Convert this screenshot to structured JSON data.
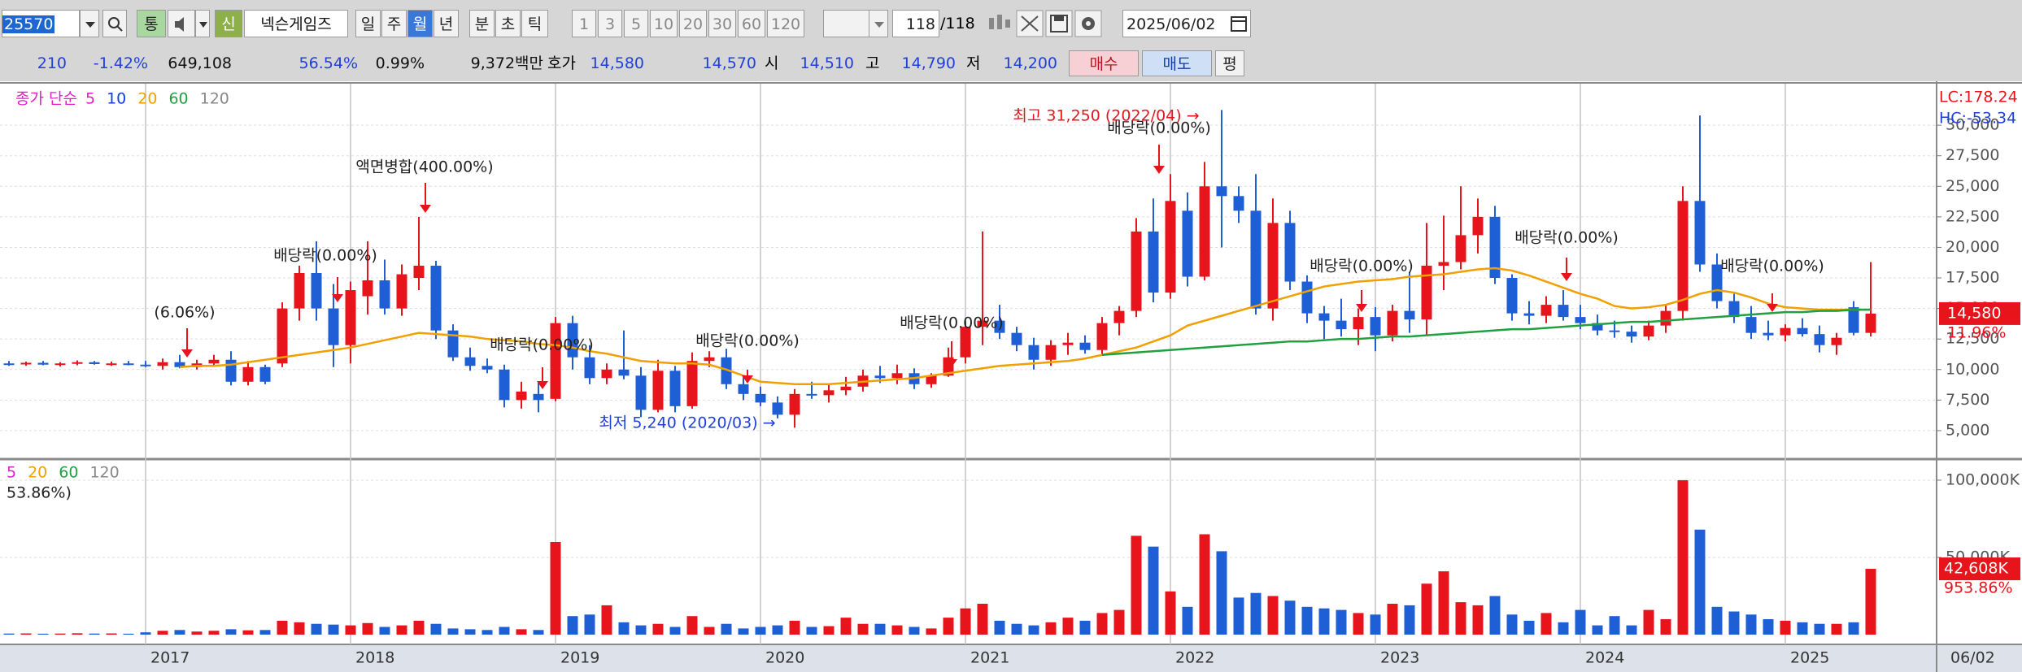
{
  "toolbar": {
    "code": "25570",
    "market_button": "통",
    "credit_button": "신",
    "stock_name": "넥슨게임즈",
    "periods": [
      "일",
      "주",
      "월",
      "년"
    ],
    "intraday": [
      "분",
      "초",
      "틱"
    ],
    "intervals": [
      "1",
      "3",
      "5",
      "10",
      "20",
      "30",
      "60",
      "120"
    ],
    "count": "118",
    "total": "/118",
    "date": "2025/06/02"
  },
  "quote_bar": {
    "change": "210",
    "change_rate": "-1.42%",
    "volume": "649,108",
    "volume_rate": "56.54%",
    "turnover": "0.99%",
    "amount": "9,372백만",
    "ask_label": "호가",
    "ask": "14,580",
    "bid": "14,570",
    "open_label": "시",
    "open": "14,510",
    "high_label": "고",
    "high": "14,790",
    "low_label": "저",
    "low": "14,200",
    "buy": "매수",
    "sell": "매도",
    "avg": "평"
  },
  "chart_data": [
    {
      "type": "candlestick",
      "legend_title": "종가 단순",
      "up_color": "#e8141c",
      "down_color": "#1f5fd6",
      "categories": [
        null,
        null,
        null,
        null,
        null,
        null,
        null,
        null,
        "2017",
        null,
        null,
        null,
        null,
        null,
        null,
        null,
        null,
        null,
        null,
        null,
        "2018",
        null,
        null,
        null,
        null,
        null,
        null,
        null,
        null,
        null,
        null,
        null,
        "2019",
        null,
        null,
        null,
        null,
        null,
        null,
        null,
        null,
        null,
        null,
        null,
        "2020",
        null,
        null,
        null,
        null,
        null,
        null,
        null,
        null,
        null,
        null,
        null,
        "2021",
        null,
        null,
        null,
        null,
        null,
        null,
        null,
        null,
        null,
        null,
        null,
        "2022",
        null,
        null,
        null,
        null,
        null,
        null,
        null,
        null,
        null,
        null,
        null,
        "2023",
        null,
        null,
        null,
        null,
        null,
        null,
        null,
        null,
        null,
        null,
        null,
        "2024",
        null,
        null,
        null,
        null,
        null,
        null,
        null,
        null,
        null,
        null,
        null,
        "2025",
        null,
        null,
        null,
        null,
        null
      ],
      "x_end_label": "06/02",
      "open": [
        10500,
        10450,
        10550,
        10400,
        10500,
        10600,
        10450,
        10500,
        10400,
        10300,
        10600,
        10200,
        10500,
        10800,
        9000,
        10200,
        10500,
        15000,
        17900,
        15000,
        12000,
        16000,
        17300,
        15000,
        17500,
        18500,
        13200,
        11000,
        10300,
        10000,
        7500,
        8000,
        7600,
        13800,
        11000,
        9300,
        10000,
        9500,
        6700,
        9900,
        7000,
        10700,
        11000,
        8800,
        8000,
        7300,
        6300,
        8000,
        7900,
        8300,
        8600,
        9500,
        9300,
        9700,
        8800,
        9500,
        11000,
        13500,
        14000,
        13000,
        12000,
        10800,
        12000,
        12200,
        11600,
        13800,
        14800,
        21300,
        16300,
        23000,
        17600,
        25000,
        24200,
        23000,
        15000,
        22000,
        17200,
        14600,
        14000,
        13300,
        14300,
        12800,
        14800,
        14100,
        18500,
        18800,
        21000,
        22500,
        17500,
        14600,
        14400,
        15300,
        14300,
        13800,
        13200,
        13100,
        12700,
        13600,
        14800,
        23800,
        18600,
        15600,
        14300,
        13000,
        12800,
        13400,
        12900,
        12000,
        15100,
        13000
      ],
      "high": [
        10700,
        10650,
        10700,
        10600,
        10750,
        10700,
        10650,
        10700,
        10700,
        10900,
        11200,
        10800,
        11200,
        11500,
        10700,
        10400,
        15500,
        18500,
        20500,
        17000,
        17200,
        20500,
        19000,
        18600,
        22500,
        18900,
        13700,
        11800,
        10900,
        10400,
        9000,
        9000,
        14300,
        14400,
        12000,
        10500,
        13200,
        10200,
        10800,
        10300,
        11400,
        11500,
        11700,
        9500,
        8600,
        7800,
        8400,
        9000,
        8800,
        9400,
        10000,
        10300,
        10400,
        10100,
        9700,
        11800,
        14000,
        21300,
        15300,
        13500,
        12600,
        12400,
        13000,
        12800,
        14300,
        15200,
        22400,
        24000,
        26000,
        24500,
        27000,
        31250,
        25000,
        26000,
        24000,
        23000,
        17700,
        15200,
        15800,
        15000,
        15100,
        15300,
        18000,
        22000,
        22600,
        25000,
        24000,
        23400,
        17800,
        15600,
        16000,
        16500,
        15300,
        14500,
        14000,
        13600,
        14000,
        15300,
        25000,
        30800,
        19500,
        16200,
        15200,
        14000,
        13700,
        14200,
        13600,
        13000,
        15600,
        18800
      ],
      "low": [
        10300,
        10300,
        10350,
        10250,
        10350,
        10400,
        10300,
        10350,
        10200,
        10000,
        10100,
        10000,
        10300,
        8700,
        8700,
        8800,
        10200,
        14000,
        14000,
        10200,
        10500,
        14500,
        14500,
        14400,
        16500,
        12500,
        10700,
        9900,
        9700,
        6900,
        6800,
        6500,
        7400,
        10000,
        8800,
        8800,
        9200,
        6100,
        6500,
        6500,
        6800,
        10200,
        8400,
        7500,
        7000,
        6000,
        5240,
        7600,
        7300,
        7900,
        8200,
        8900,
        8800,
        8400,
        8500,
        9400,
        10500,
        12000,
        12500,
        11500,
        10000,
        10300,
        11200,
        11300,
        11200,
        12800,
        14300,
        15500,
        15800,
        16800,
        17300,
        20000,
        22000,
        14500,
        14000,
        16500,
        13800,
        12500,
        12700,
        12000,
        11500,
        12300,
        13000,
        12800,
        16500,
        18200,
        19500,
        17000,
        14000,
        13700,
        13800,
        14000,
        13300,
        12800,
        12600,
        12200,
        12400,
        13000,
        14000,
        18000,
        15000,
        13800,
        12500,
        12400,
        12300,
        12700,
        11400,
        11200,
        12800,
        12700
      ],
      "close": [
        10450,
        10550,
        10400,
        10500,
        10600,
        10450,
        10500,
        10400,
        10300,
        10600,
        10200,
        10500,
        10800,
        9000,
        10200,
        9000,
        15000,
        17900,
        15000,
        12000,
        16500,
        17300,
        15000,
        17800,
        18500,
        13200,
        11000,
        10300,
        10000,
        7500,
        8200,
        7500,
        13800,
        11000,
        9300,
        10000,
        9500,
        6700,
        9900,
        7000,
        10700,
        11000,
        8800,
        8000,
        7300,
        6300,
        8000,
        7900,
        8300,
        8600,
        9500,
        9300,
        9700,
        8800,
        9500,
        11000,
        13500,
        14000,
        13000,
        12000,
        10800,
        12000,
        12200,
        11600,
        13800,
        14800,
        21300,
        16300,
        23800,
        17600,
        25000,
        24200,
        23000,
        15000,
        22000,
        17200,
        14600,
        14000,
        13300,
        14300,
        12800,
        14800,
        14100,
        18500,
        18800,
        21000,
        22500,
        17500,
        14600,
        14400,
        15300,
        14300,
        13800,
        13200,
        13100,
        12700,
        13600,
        14800,
        23800,
        18600,
        15600,
        14300,
        13000,
        12800,
        13400,
        12900,
        12000,
        12600,
        13000,
        14580
      ],
      "series": [
        {
          "name": "5",
          "color": "#e020c8"
        },
        {
          "name": "10",
          "color": "#1040e0"
        },
        {
          "name": "20",
          "color": "#f0a000",
          "values": [
            null,
            null,
            null,
            null,
            null,
            null,
            null,
            null,
            null,
            null,
            10200,
            10300,
            10300,
            10400,
            10600,
            10800,
            11000,
            11200,
            11400,
            11600,
            11800,
            12100,
            12400,
            12700,
            13000,
            12900,
            12800,
            12700,
            12500,
            12400,
            12300,
            12100,
            12000,
            11800,
            11500,
            11300,
            11000,
            10700,
            10600,
            10500,
            10500,
            10400,
            10000,
            9500,
            9000,
            8900,
            8800,
            8800,
            8800,
            8900,
            9000,
            9100,
            9200,
            9300,
            9500,
            9700,
            9900,
            10100,
            10300,
            10400,
            10500,
            10600,
            10700,
            10900,
            11200,
            11500,
            11800,
            12300,
            12800,
            13600,
            14000,
            14400,
            14800,
            15200,
            15600,
            16000,
            16400,
            16800,
            17000,
            17200,
            17300,
            17400,
            17600,
            17700,
            17800,
            18000,
            18200,
            18300,
            18100,
            17700,
            17200,
            16700,
            16200,
            15800,
            15200,
            15000,
            15100,
            15300,
            15700,
            16200,
            16500,
            16300,
            15900,
            15400,
            15100,
            15000,
            14900,
            14900,
            14900,
            14900
          ]
        },
        {
          "name": "60",
          "color": "#20a040",
          "values": [
            null,
            null,
            null,
            null,
            null,
            null,
            null,
            null,
            null,
            null,
            null,
            null,
            null,
            null,
            null,
            null,
            null,
            null,
            null,
            null,
            null,
            null,
            null,
            null,
            null,
            null,
            null,
            null,
            null,
            null,
            null,
            null,
            null,
            null,
            null,
            null,
            null,
            null,
            null,
            null,
            null,
            null,
            null,
            null,
            null,
            null,
            null,
            null,
            null,
            null,
            null,
            null,
            null,
            null,
            null,
            null,
            null,
            null,
            null,
            null,
            null,
            null,
            null,
            null,
            11200,
            11300,
            11400,
            11500,
            11600,
            11700,
            11800,
            11900,
            12000,
            12100,
            12200,
            12300,
            12300,
            12400,
            12500,
            12500,
            12600,
            12700,
            12700,
            12800,
            12900,
            13000,
            13100,
            13200,
            13300,
            13300,
            13400,
            13500,
            13600,
            13700,
            13800,
            13900,
            13900,
            14000,
            14100,
            14200,
            14300,
            14400,
            14500,
            14600,
            14700,
            14700,
            14800,
            14800,
            14900,
            14900
          ]
        },
        {
          "name": "120",
          "color": "#888888"
        }
      ],
      "ylim": [
        2800,
        33400
      ],
      "yticks": [
        {
          "value": 5000,
          "label": "5,000"
        },
        {
          "value": 7500,
          "label": "7,500"
        },
        {
          "value": 10000,
          "label": "10,000"
        },
        {
          "value": 12500,
          "label": "12,500"
        },
        {
          "value": 15000,
          "label": "15,000"
        },
        {
          "value": 17500,
          "label": "17,500"
        },
        {
          "value": 20000,
          "label": "20,000"
        },
        {
          "value": 22500,
          "label": "22,500"
        },
        {
          "value": 25000,
          "label": "25,000"
        },
        {
          "value": 27500,
          "label": "27,500"
        },
        {
          "value": 30000,
          "label": "30,000"
        }
      ],
      "grid": true,
      "lc_label": "LC:178.24",
      "hc_label": "HC:-53.34",
      "last_price": 14580,
      "last_price_label": "14,580",
      "change_label": "11.96%",
      "annotations": [
        {
          "text": "(6.06%)",
          "color": "#222222"
        },
        {
          "text": "액면병합(400.00%)",
          "color": "#222222"
        },
        {
          "text": "배당락(0.00%)",
          "color": "#222222"
        },
        {
          "text": "배당락(0.00%)",
          "color": "#222222"
        },
        {
          "text": "배당락(0.00%)",
          "color": "#222222"
        },
        {
          "text": "배당락(0.00%)",
          "color": "#222222"
        },
        {
          "text": "배당락(0.00%)",
          "color": "#222222"
        },
        {
          "text": "배당락(0.00%)",
          "color": "#222222"
        },
        {
          "text": "배당락(0.00%)",
          "color": "#222222"
        },
        {
          "text": "배당락(0.00%)",
          "color": "#222222"
        },
        {
          "text": "최고 31,250 (2022/04) →",
          "color": "#e8141c"
        },
        {
          "text": "최저 5,240 (2020/03) →",
          "color": "#1f3fe0"
        }
      ]
    },
    {
      "type": "bar",
      "values": [
        700,
        800,
        600,
        700,
        900,
        700,
        800,
        600,
        1500,
        2500,
        3000,
        2000,
        2500,
        3500,
        2800,
        3000,
        9000,
        8000,
        7000,
        6500,
        6000,
        7500,
        5000,
        6000,
        9000,
        7000,
        4000,
        3500,
        3000,
        5000,
        3500,
        3000,
        60000,
        12000,
        13000,
        19000,
        8000,
        6000,
        7000,
        5000,
        12000,
        5000,
        7000,
        4000,
        5000,
        6000,
        9000,
        5000,
        5500,
        11000,
        7000,
        7000,
        6000,
        5000,
        4000,
        11000,
        17000,
        20000,
        9000,
        7000,
        6000,
        8000,
        11000,
        9000,
        14000,
        16000,
        64000,
        57000,
        28000,
        18000,
        65000,
        54000,
        24000,
        27000,
        25000,
        22000,
        18000,
        17000,
        16000,
        14000,
        13000,
        20000,
        19000,
        33000,
        41000,
        21000,
        19000,
        25000,
        13000,
        9000,
        14000,
        8000,
        16000,
        6000,
        12000,
        6000,
        16000,
        10000,
        100000,
        68000,
        18000,
        15000,
        13000,
        10000,
        9000,
        8000,
        7000,
        7000,
        8000,
        42608
      ],
      "series": [
        {
          "name": "5",
          "color": "#e020c8"
        },
        {
          "name": "20",
          "color": "#f0a000"
        },
        {
          "name": "60",
          "color": "#20a040"
        },
        {
          "name": "120",
          "color": "#888888"
        }
      ],
      "legend_note": "53.86%)",
      "ylim": [
        -6300,
        112600
      ],
      "yticks": [
        {
          "value": 50000,
          "label": "50,000K"
        },
        {
          "value": 100000,
          "label": "100,000K"
        }
      ],
      "grid": true,
      "last_value_label": "42,608K",
      "change_label": "953.86%"
    }
  ]
}
